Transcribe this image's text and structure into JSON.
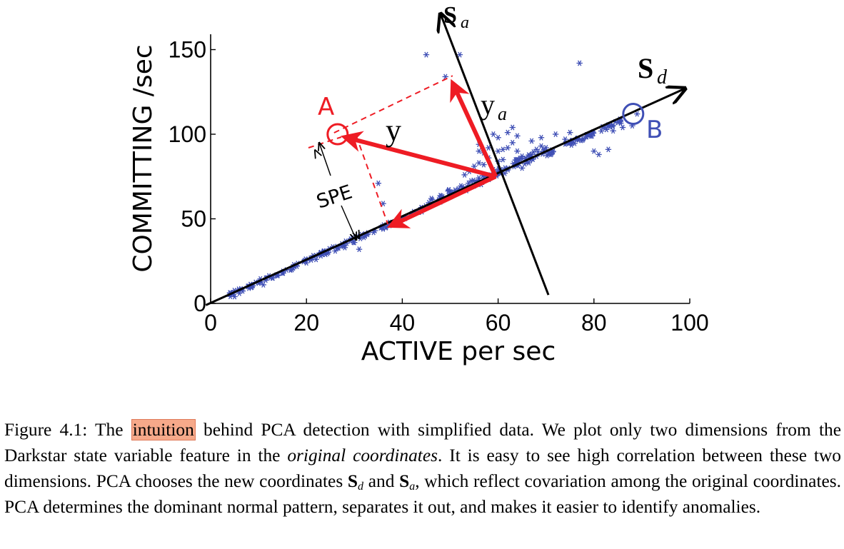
{
  "chart_data": {
    "type": "scatter",
    "xlabel": "ACTIVE per sec",
    "ylabel": "COMMITTING /sec",
    "xlim": [
      0,
      100
    ],
    "ylim": [
      0,
      155
    ],
    "xticks": [
      "0",
      "20",
      "40",
      "60",
      "80",
      "100"
    ],
    "yticks": [
      "0",
      "50",
      "100",
      "150"
    ],
    "xtick_values": [
      0,
      20,
      40,
      60,
      80,
      100
    ],
    "ytick_values": [
      0,
      50,
      100,
      150
    ],
    "marker": "*",
    "series_color": "#3f4fb5",
    "trend": {
      "slope": 1.26,
      "intercept": 0,
      "x_range": [
        4,
        86
      ],
      "noise": 1.4
    },
    "sparse_points": [
      [
        5,
        4
      ],
      [
        6,
        6
      ],
      [
        8,
        9
      ],
      [
        10,
        12
      ],
      [
        11,
        11
      ],
      [
        13,
        15
      ],
      [
        15,
        18
      ],
      [
        17,
        20
      ],
      [
        18,
        22
      ],
      [
        20,
        24
      ],
      [
        22,
        26
      ],
      [
        24,
        29
      ],
      [
        26,
        31
      ],
      [
        28,
        33
      ],
      [
        30,
        36
      ],
      [
        31,
        32
      ],
      [
        32,
        39
      ],
      [
        34,
        42
      ],
      [
        36,
        44
      ],
      [
        38,
        47
      ],
      [
        40,
        50
      ],
      [
        42,
        53
      ],
      [
        44,
        56
      ],
      [
        46,
        58
      ],
      [
        48,
        61
      ],
      [
        50,
        64
      ],
      [
        35,
        71
      ],
      [
        45,
        147
      ],
      [
        52,
        147
      ],
      [
        75,
        101
      ],
      [
        80,
        90
      ],
      [
        81,
        88
      ],
      [
        83,
        91
      ],
      [
        84,
        102
      ],
      [
        86,
        104
      ],
      [
        88,
        105
      ],
      [
        89,
        112
      ],
      [
        77,
        142
      ],
      [
        55,
        81
      ],
      [
        56,
        94
      ],
      [
        57,
        89
      ],
      [
        59,
        100
      ],
      [
        63,
        104
      ],
      [
        62,
        101
      ],
      [
        65,
        87
      ],
      [
        67,
        96
      ],
      [
        70,
        92
      ],
      [
        72,
        100
      ],
      [
        56,
        83
      ],
      [
        58,
        86
      ],
      [
        61,
        85
      ],
      [
        60,
        98
      ],
      [
        64,
        90
      ],
      [
        66,
        84
      ],
      [
        68,
        91
      ],
      [
        71,
        88
      ],
      [
        74,
        97
      ],
      [
        69,
        93
      ],
      [
        54,
        78
      ],
      [
        53,
        76
      ],
      [
        57,
        82
      ],
      [
        59,
        79
      ],
      [
        60,
        90
      ],
      [
        62,
        92
      ],
      [
        64,
        85
      ],
      [
        67,
        88
      ],
      [
        48,
        60
      ],
      [
        65,
        80
      ],
      [
        49,
        134
      ],
      [
        51,
        128
      ],
      [
        56,
        90
      ],
      [
        58,
        92
      ],
      [
        60,
        84
      ],
      [
        61,
        91
      ],
      [
        63,
        95
      ],
      [
        36,
        59
      ],
      [
        64,
        99
      ],
      [
        69,
        98
      ]
    ],
    "axes": {
      "S_d": {
        "from": [
          -1,
          -1
        ],
        "to": [
          99,
          127
        ]
      },
      "S_a": {
        "from": [
          70.5,
          5
        ],
        "to": [
          48,
          171
        ]
      }
    },
    "center": [
      59.5,
      75
    ],
    "point_A": [
      26.5,
      100
    ],
    "point_B": [
      88.2,
      112
    ],
    "projection_a": [
      50.5,
      132
    ],
    "projection_d": [
      37,
      45
    ],
    "spe_foot": [
      31,
      36
    ],
    "spe_top": [
      21.5,
      93
    ],
    "annotations": {
      "A": "A",
      "B": "B",
      "S_d_main": "S",
      "S_d_sub": "d",
      "S_a_main": "S",
      "S_a_sub": "a",
      "y": "y",
      "y_a_main": "y",
      "y_a_sub": "a",
      "SPE": "SPE"
    },
    "colors": {
      "red": "#ee1c24",
      "blue": "#3f4fb5",
      "black": "#000000"
    }
  },
  "caption": {
    "prefix": "Figure 4.1: The",
    "highlighted_word": "intuition",
    "text_1": "behind PCA detection with simplified data. We plot only two dimensions from the Darkstar state variable feature in the",
    "italic_phrase": "original coordinates",
    "text_2": ". It is easy to see high correlation between these two dimensions. PCA chooses the new coordinates",
    "sym_1": "S",
    "sym_1_sub": "d",
    "and": "and",
    "sym_2": "S",
    "sym_2_sub": "a",
    "text_3": ", which reflect covariation among the original coordinates. PCA determines the dominant normal pattern, separates it out, and makes it easier to identify anomalies."
  }
}
